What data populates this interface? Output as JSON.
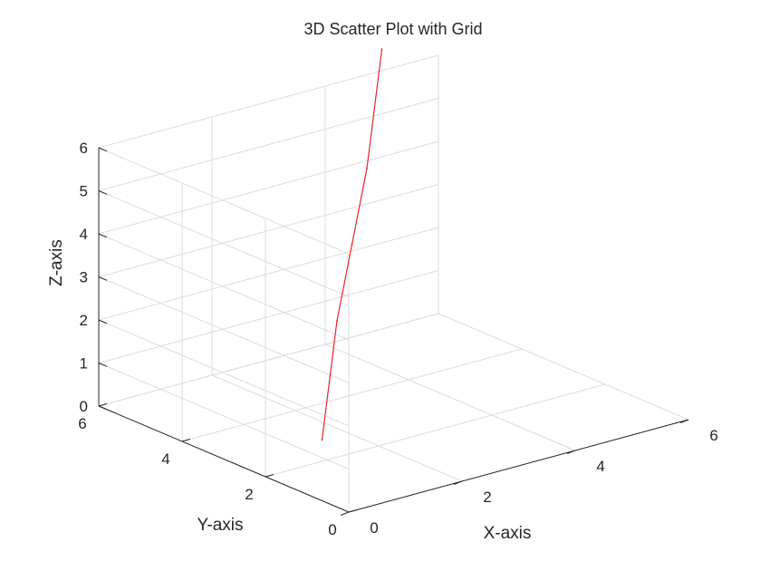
{
  "chart_data": {
    "type": "line",
    "title": "3D Scatter Plot with Grid",
    "xlabel": "X-axis",
    "ylabel": "Y-axis",
    "zlabel": "Z-axis",
    "xlim": [
      0,
      6
    ],
    "ylim": [
      0,
      6
    ],
    "zlim": [
      0,
      6
    ],
    "x_ticks": [
      0,
      2,
      4,
      6
    ],
    "y_ticks": [
      0,
      2,
      4,
      6
    ],
    "z_ticks": [
      0,
      1,
      2,
      3,
      4,
      5,
      6
    ],
    "grid": true,
    "series": [
      {
        "color": "#e8242a",
        "x": [
          1,
          2,
          3,
          4,
          5
        ],
        "y": [
          2,
          3,
          4,
          5,
          6
        ],
        "z": [
          0.5,
          2.5,
          3.5,
          4.5,
          6.5
        ]
      }
    ]
  }
}
